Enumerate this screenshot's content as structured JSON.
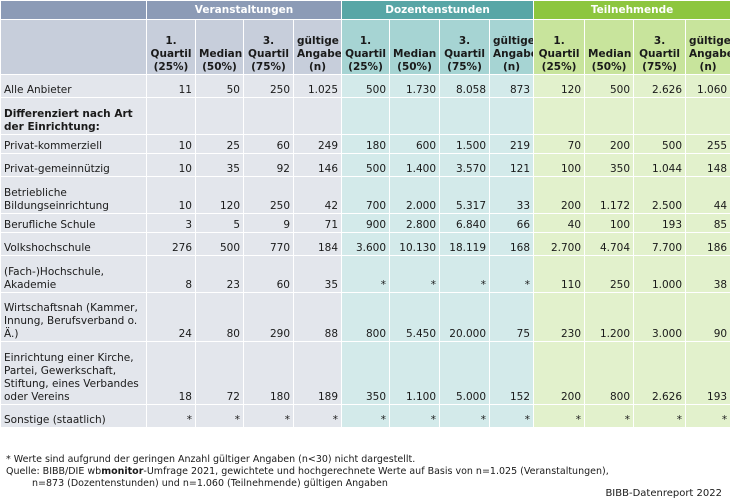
{
  "table": {
    "groups": [
      "Veranstaltungen",
      "Dozentenstunden",
      "Teilnehmende"
    ],
    "subheaders": [
      "1. Quartil (25%)",
      "Median (50%)",
      "3. Quartil (75%)",
      "gültige Angaben (n)"
    ],
    "rows": [
      {
        "label": "Alle Anbieter",
        "values": [
          "11",
          "50",
          "250",
          "1.025",
          "500",
          "1.730",
          "8.058",
          "873",
          "120",
          "500",
          "2.626",
          "1.060"
        ]
      },
      {
        "label": "Differenziert nach Art der Einrichtung:",
        "values": [
          "",
          "",
          "",
          "",
          "",
          "",
          "",
          "",
          "",
          "",
          "",
          ""
        ]
      },
      {
        "label": "Privat-kommerziell",
        "values": [
          "10",
          "25",
          "60",
          "249",
          "180",
          "600",
          "1.500",
          "219",
          "70",
          "200",
          "500",
          "255"
        ]
      },
      {
        "label": "Privat-gemeinnützig",
        "values": [
          "10",
          "35",
          "92",
          "146",
          "500",
          "1.400",
          "3.570",
          "121",
          "100",
          "350",
          "1.044",
          "148"
        ]
      },
      {
        "label": "Betriebliche Bildungseinrichtung",
        "values": [
          "10",
          "120",
          "250",
          "42",
          "700",
          "2.000",
          "5.317",
          "33",
          "200",
          "1.172",
          "2.500",
          "44"
        ]
      },
      {
        "label": "Berufliche Schule",
        "values": [
          "3",
          "5",
          "9",
          "71",
          "900",
          "2.800",
          "6.840",
          "66",
          "40",
          "100",
          "193",
          "85"
        ]
      },
      {
        "label": "Volkshochschule",
        "values": [
          "276",
          "500",
          "770",
          "184",
          "3.600",
          "10.130",
          "18.119",
          "168",
          "2.700",
          "4.704",
          "7.700",
          "186"
        ]
      },
      {
        "label": "(Fach-)Hochschule, Akademie",
        "values": [
          "8",
          "23",
          "60",
          "35",
          "*",
          "*",
          "*",
          "*",
          "110",
          "250",
          "1.000",
          "38"
        ]
      },
      {
        "label": "Wirtschaftsnah (Kammer, Innung, Berufsverband o. Ä.)",
        "values": [
          "24",
          "80",
          "290",
          "88",
          "800",
          "5.450",
          "20.000",
          "75",
          "230",
          "1.200",
          "3.000",
          "90"
        ]
      },
      {
        "label": "Einrichtung einer Kirche, Partei, Gewerkschaft, Stiftung, eines Verbandes oder Vereins",
        "values": [
          "18",
          "72",
          "180",
          "189",
          "350",
          "1.100",
          "5.000",
          "152",
          "200",
          "800",
          "2.626",
          "193"
        ]
      },
      {
        "label": "Sonstige (staatlich)",
        "values": [
          "*",
          "*",
          "*",
          "*",
          "*",
          "*",
          "*",
          "*",
          "*",
          "*",
          "*",
          "*"
        ]
      }
    ]
  },
  "notes": {
    "footnote": "* Werte sind aufgrund der geringen Anzahl gültiger Angaben (n<30) nicht dargestellt.",
    "source_prefix": "Quelle: BIBB/DIE wb",
    "source_bold": "monitor",
    "source_suffix": "-Umfrage 2021, gewichtete und hochgerechnete Werte auf Basis von n=1.025 (Veranstaltungen),",
    "source_line2": "n=873 (Dozentenstunden) und n=1.060 (Teilnehmende) gültigen Angaben",
    "brand": "BIBB-Datenreport 2022"
  }
}
